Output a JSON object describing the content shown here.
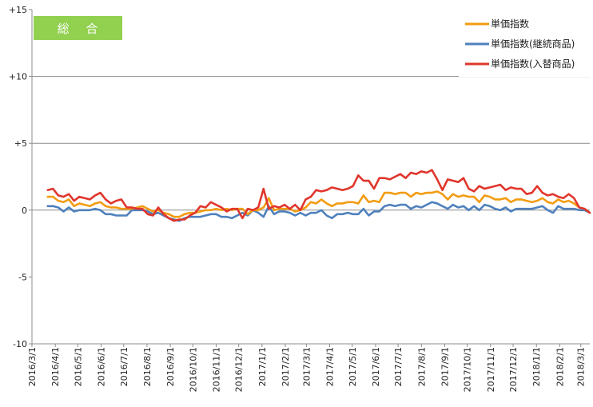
{
  "badge": {
    "label": "総 合",
    "color": "#92D050"
  },
  "chart_data": {
    "type": "line",
    "ylim": [
      -10,
      15
    ],
    "yticks": [
      {
        "value": 15,
        "label": "+15"
      },
      {
        "value": 10,
        "label": "+10"
      },
      {
        "value": 5,
        "label": "+5"
      },
      {
        "value": 0,
        "label": "0"
      },
      {
        "value": -5,
        "label": "-5"
      },
      {
        "value": -10,
        "label": "-10"
      }
    ],
    "gridlines_y": [
      5,
      10
    ],
    "x_index_range": [
      0,
      106
    ],
    "xticks": [
      {
        "i": 0,
        "label": "2016/3/1"
      },
      {
        "i": 4.43,
        "label": "2016/4/1"
      },
      {
        "i": 8.71,
        "label": "2016/5/1"
      },
      {
        "i": 13.14,
        "label": "2016/6/1"
      },
      {
        "i": 17.43,
        "label": "2016/7/1"
      },
      {
        "i": 21.86,
        "label": "2016/8/1"
      },
      {
        "i": 26.29,
        "label": "2016/9/1"
      },
      {
        "i": 30.57,
        "label": "2016/10/1"
      },
      {
        "i": 35.0,
        "label": "2016/11/1"
      },
      {
        "i": 39.29,
        "label": "2016/12/1"
      },
      {
        "i": 43.71,
        "label": "2017/1/1"
      },
      {
        "i": 48.14,
        "label": "2017/2/1"
      },
      {
        "i": 52.14,
        "label": "2017/3/1"
      },
      {
        "i": 56.57,
        "label": "2017/4/1"
      },
      {
        "i": 60.86,
        "label": "2017/5/1"
      },
      {
        "i": 65.29,
        "label": "2017/6/1"
      },
      {
        "i": 69.57,
        "label": "2017/7/1"
      },
      {
        "i": 74.0,
        "label": "2017/8/1"
      },
      {
        "i": 78.43,
        "label": "2017/9/1"
      },
      {
        "i": 82.71,
        "label": "2017/10/1"
      },
      {
        "i": 87.14,
        "label": "2017/11/1"
      },
      {
        "i": 91.43,
        "label": "2017/12/1"
      },
      {
        "i": 95.86,
        "label": "2018/1/1"
      },
      {
        "i": 100.29,
        "label": "2018/2/1"
      },
      {
        "i": 104.29,
        "label": "2018/3/1"
      }
    ],
    "series": [
      {
        "name": "単価指数",
        "color": "#F39C12",
        "start_index": 3,
        "values": [
          1.0,
          1.0,
          0.7,
          0.6,
          0.8,
          0.3,
          0.5,
          0.4,
          0.3,
          0.5,
          0.6,
          0.3,
          0.2,
          0.2,
          0.1,
          0.1,
          0.1,
          0.2,
          0.3,
          0.1,
          -0.1,
          0.0,
          -0.2,
          -0.3,
          -0.5,
          -0.5,
          -0.3,
          -0.2,
          -0.2,
          -0.1,
          0.0,
          0.0,
          0.1,
          0.0,
          0.1,
          0.0,
          0.1,
          0.1,
          -0.3,
          0.0,
          0.0,
          0.2,
          0.9,
          0.0,
          0.1,
          0.1,
          0.1,
          -0.1,
          0.0,
          0.2,
          0.6,
          0.5,
          0.8,
          0.5,
          0.3,
          0.5,
          0.5,
          0.6,
          0.6,
          0.5,
          1.1,
          0.6,
          0.7,
          0.6,
          1.3,
          1.3,
          1.2,
          1.3,
          1.3,
          1.0,
          1.3,
          1.2,
          1.3,
          1.3,
          1.4,
          1.2,
          0.8,
          1.2,
          1.0,
          1.1,
          1.0,
          1.0,
          0.6,
          1.1,
          1.0,
          0.8,
          0.8,
          0.9,
          0.6,
          0.8,
          0.8,
          0.7,
          0.6,
          0.7,
          0.9,
          0.6,
          0.5,
          0.8,
          0.6,
          0.7,
          0.5,
          0.2,
          0.1,
          -0.2
        ]
      },
      {
        "name": "単価指数(継続商品)",
        "color": "#4F81BD",
        "start_index": 3,
        "values": [
          0.3,
          0.3,
          0.2,
          -0.1,
          0.2,
          -0.1,
          0.0,
          0.0,
          0.0,
          0.1,
          0.0,
          -0.3,
          -0.3,
          -0.4,
          -0.4,
          -0.4,
          0.0,
          0.0,
          0.0,
          -0.1,
          -0.3,
          -0.2,
          -0.4,
          -0.6,
          -0.7,
          -0.8,
          -0.6,
          -0.5,
          -0.5,
          -0.5,
          -0.4,
          -0.3,
          -0.3,
          -0.5,
          -0.5,
          -0.6,
          -0.4,
          -0.2,
          -0.4,
          0.0,
          -0.2,
          -0.5,
          0.3,
          -0.3,
          -0.1,
          -0.1,
          -0.2,
          -0.4,
          -0.2,
          -0.4,
          -0.2,
          -0.2,
          0.0,
          -0.4,
          -0.6,
          -0.3,
          -0.3,
          -0.2,
          -0.3,
          -0.3,
          0.1,
          -0.4,
          -0.1,
          -0.1,
          0.3,
          0.4,
          0.3,
          0.4,
          0.4,
          0.1,
          0.3,
          0.2,
          0.4,
          0.6,
          0.5,
          0.3,
          0.1,
          0.4,
          0.2,
          0.3,
          0.0,
          0.3,
          0.0,
          0.4,
          0.3,
          0.1,
          0.0,
          0.2,
          -0.1,
          0.1,
          0.1,
          0.1,
          0.1,
          0.2,
          0.3,
          0.0,
          -0.2,
          0.3,
          0.1,
          0.1,
          0.1,
          0.0,
          0.0,
          -0.2
        ]
      },
      {
        "name": "単価指数(入替商品)",
        "color": "#E0362C",
        "start_index": 3,
        "values": [
          1.5,
          1.6,
          1.1,
          1.0,
          1.2,
          0.7,
          1.0,
          0.9,
          0.8,
          1.1,
          1.3,
          0.8,
          0.5,
          0.7,
          0.8,
          0.2,
          0.2,
          0.1,
          0.1,
          -0.3,
          -0.4,
          0.2,
          -0.3,
          -0.6,
          -0.8,
          -0.7,
          -0.7,
          -0.4,
          -0.2,
          0.3,
          0.2,
          0.6,
          0.4,
          0.2,
          -0.1,
          0.1,
          0.1,
          -0.6,
          0.1,
          0.0,
          0.2,
          1.6,
          0.1,
          0.3,
          0.2,
          0.4,
          0.1,
          0.4,
          0.0,
          0.8,
          1.0,
          1.5,
          1.4,
          1.5,
          1.7,
          1.6,
          1.5,
          1.6,
          1.8,
          2.6,
          2.2,
          2.2,
          1.6,
          2.4,
          2.4,
          2.3,
          2.5,
          2.7,
          2.4,
          2.8,
          2.7,
          2.9,
          2.8,
          3.0,
          2.3,
          1.5,
          2.3,
          2.2,
          2.1,
          2.4,
          1.6,
          1.4,
          1.8,
          1.6,
          1.7,
          1.8,
          1.9,
          1.5,
          1.7,
          1.6,
          1.6,
          1.2,
          1.3,
          1.8,
          1.3,
          1.1,
          1.2,
          1.0,
          0.9,
          1.2,
          0.9,
          0.2,
          0.1,
          -0.2
        ]
      }
    ]
  }
}
